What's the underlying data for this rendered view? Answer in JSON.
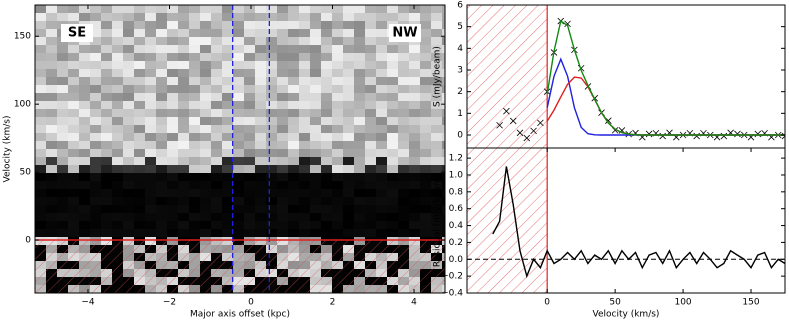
{
  "chart_data": [
    {
      "type": "pv-diagram",
      "xlabel": "Major axis offset (kpc)",
      "ylabel": "Velocity (km/s)",
      "xlim": [
        -5.3,
        4.76
      ],
      "ylim": [
        -39,
        173
      ],
      "xticks": [
        {
          "value": -4,
          "label": "−4"
        },
        {
          "value": -2,
          "label": "−2"
        },
        0,
        2,
        4
      ],
      "yticks": [
        0,
        50,
        100,
        150
      ],
      "annotations": [
        "SE",
        "NW"
      ],
      "vlines": [
        -0.45,
        0.45
      ],
      "vline_color": "#1f1fe0",
      "hlines": [
        0
      ],
      "hline_color": "#e02020",
      "hatch_below_y": 0,
      "hatch_color": "#e05050"
    },
    {
      "type": "line",
      "ylabel": "S (mJy/beam)",
      "xlim": [
        -59,
        175
      ],
      "ylim": [
        -0.6,
        6
      ],
      "yticks": [
        0,
        1,
        2,
        3,
        4,
        5,
        6
      ],
      "vlines": [
        0
      ],
      "vline_color": "#e02020",
      "hatch_before_x": 0,
      "hatch_color": "#e05050",
      "series": [
        {
          "color": "#000000",
          "marker": "x",
          "x": [
            -35,
            -30,
            -25,
            -20,
            -15,
            -10,
            -5,
            0,
            5,
            10,
            15,
            20,
            25,
            30,
            35,
            40,
            45,
            50,
            55,
            60,
            65,
            70,
            75,
            80,
            85,
            90,
            95,
            100,
            105,
            110,
            115,
            120,
            125,
            130,
            135,
            140,
            145,
            150,
            155,
            160,
            165,
            170,
            175
          ],
          "values": [
            0.45,
            1.1,
            0.65,
            0.1,
            -0.14,
            0.19,
            0.56,
            2.0,
            3.81,
            5.26,
            5.13,
            3.93,
            3.08,
            2.24,
            1.7,
            1.03,
            0.66,
            0.22,
            0.21,
            0.04,
            0.09,
            -0.1,
            0.05,
            0.08,
            -0.05,
            0.1,
            -0.1,
            0,
            0.08,
            -0.05,
            0.08,
            0,
            -0.1,
            -0.05,
            0.1,
            0.05,
            0,
            -0.1,
            0.05,
            0.08,
            -0.1,
            0,
            -0.05
          ]
        },
        {
          "color": "#2020e0",
          "x": [
            0,
            5,
            10,
            15,
            20,
            25,
            30,
            35,
            40,
            45,
            50,
            55,
            60,
            65,
            70,
            75,
            80,
            85,
            90,
            95,
            100,
            105,
            110,
            115,
            120,
            125,
            130,
            135,
            140,
            145,
            150,
            155,
            160,
            165,
            170,
            175
          ],
          "values": [
            1.26,
            2.71,
            3.5,
            2.71,
            1.26,
            0.35,
            0.06,
            0.01,
            0,
            0,
            0,
            0,
            0,
            0,
            0,
            0,
            0,
            0,
            0,
            0,
            0,
            0,
            0,
            0,
            0,
            0,
            0,
            0,
            0,
            0,
            0,
            0,
            0,
            0,
            0,
            0
          ]
        },
        {
          "color": "#e02020",
          "x": [
            0,
            5,
            10,
            15,
            20,
            25,
            30,
            35,
            40,
            45,
            50,
            55,
            60,
            65,
            70,
            75,
            80,
            85,
            90,
            95,
            100,
            105,
            110,
            115,
            120,
            125,
            130,
            135,
            140,
            145,
            150,
            155,
            160,
            165,
            170,
            175
          ],
          "values": [
            0.64,
            1.15,
            1.76,
            2.34,
            2.67,
            2.63,
            2.23,
            1.64,
            1.03,
            0.56,
            0.27,
            0.11,
            0.04,
            0.01,
            0,
            0,
            0,
            0,
            0,
            0,
            0,
            0,
            0,
            0,
            0,
            0,
            0,
            0,
            0,
            0,
            0,
            0,
            0,
            0,
            0,
            0
          ]
        },
        {
          "color": "#108a10",
          "x": [
            0,
            5,
            10,
            15,
            20,
            25,
            30,
            35,
            40,
            45,
            50,
            55,
            60,
            65,
            70,
            75,
            80,
            85,
            90,
            95,
            100,
            105,
            110,
            115,
            120,
            125,
            130,
            135,
            140,
            145,
            150,
            155,
            160,
            165,
            170,
            175
          ],
          "values": [
            1.9,
            3.86,
            5.26,
            5.05,
            3.93,
            2.98,
            2.29,
            1.65,
            1.03,
            0.56,
            0.27,
            0.11,
            0.04,
            0.01,
            0,
            0,
            0,
            0,
            0,
            0,
            0,
            0,
            0,
            0,
            0,
            0,
            0,
            0,
            0,
            0,
            0,
            0,
            0,
            0,
            0,
            0
          ]
        }
      ]
    },
    {
      "type": "line",
      "xlabel": "Velocity (km/s)",
      "ylabel": "Residual (mJy/beam)",
      "xlim": [
        -59,
        175
      ],
      "ylim": [
        -0.4,
        1.32
      ],
      "xticks": [
        0,
        50,
        100,
        150
      ],
      "yticks": [
        {
          "value": -0.4,
          "label": "−0.4"
        },
        {
          "value": -0.2,
          "label": "−0.2"
        },
        {
          "value": 0,
          "label": "0.0"
        },
        0.2,
        0.4,
        0.6,
        0.8,
        {
          "value": 1,
          "label": "1.0"
        },
        1.2
      ],
      "vlines": [
        0
      ],
      "vline_color": "#e02020",
      "hatch_before_x": 0,
      "hatch_color": "#e05050",
      "hlines": [
        0
      ],
      "hline_color": "#000000",
      "hline_dashed": true,
      "series": [
        {
          "color": "#000000",
          "x": [
            -40,
            -35,
            -30,
            -25,
            -20,
            -15,
            -10,
            -5,
            0,
            5,
            10,
            15,
            20,
            25,
            30,
            35,
            40,
            45,
            50,
            55,
            60,
            65,
            70,
            75,
            80,
            85,
            90,
            95,
            100,
            105,
            110,
            115,
            120,
            125,
            130,
            135,
            140,
            145,
            150,
            155,
            160,
            165,
            170,
            175
          ],
          "values": [
            0.3,
            0.45,
            1.1,
            0.65,
            0.1,
            -0.2,
            0,
            -0.1,
            0.1,
            -0.05,
            0,
            0.08,
            0,
            0.1,
            -0.05,
            0.05,
            0,
            0.1,
            -0.05,
            0.1,
            0,
            0.08,
            -0.1,
            0.05,
            0.08,
            -0.05,
            0.1,
            -0.1,
            0,
            0.08,
            -0.05,
            0.08,
            0,
            -0.1,
            -0.05,
            0.1,
            0.05,
            0,
            -0.1,
            0.05,
            0.08,
            -0.1,
            0,
            -0.05
          ]
        }
      ]
    }
  ]
}
